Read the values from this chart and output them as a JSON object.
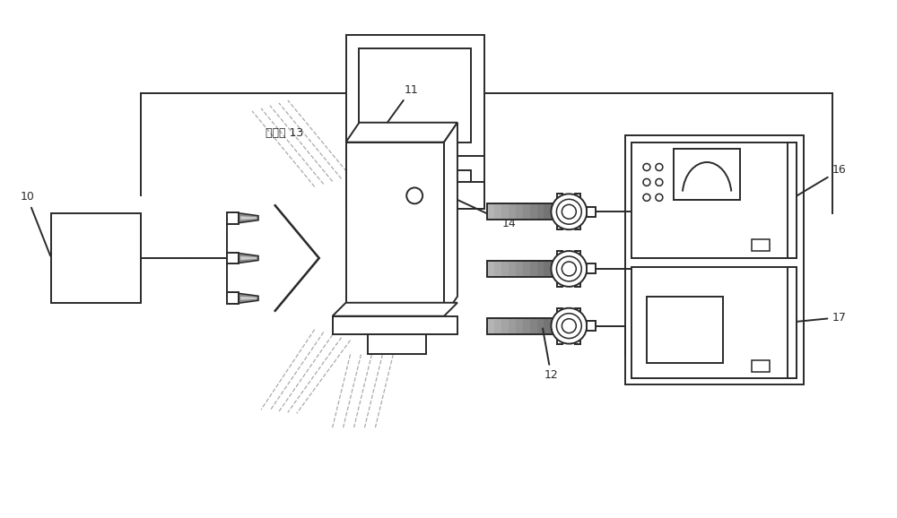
{
  "bg_color": "#ffffff",
  "lc": "#2a2a2a",
  "lw": 1.4,
  "label_10": "10",
  "label_11": "11",
  "label_12": "12",
  "label_13": "热辐射 13",
  "label_14": "14",
  "label_16": "16",
  "label_17": "17"
}
